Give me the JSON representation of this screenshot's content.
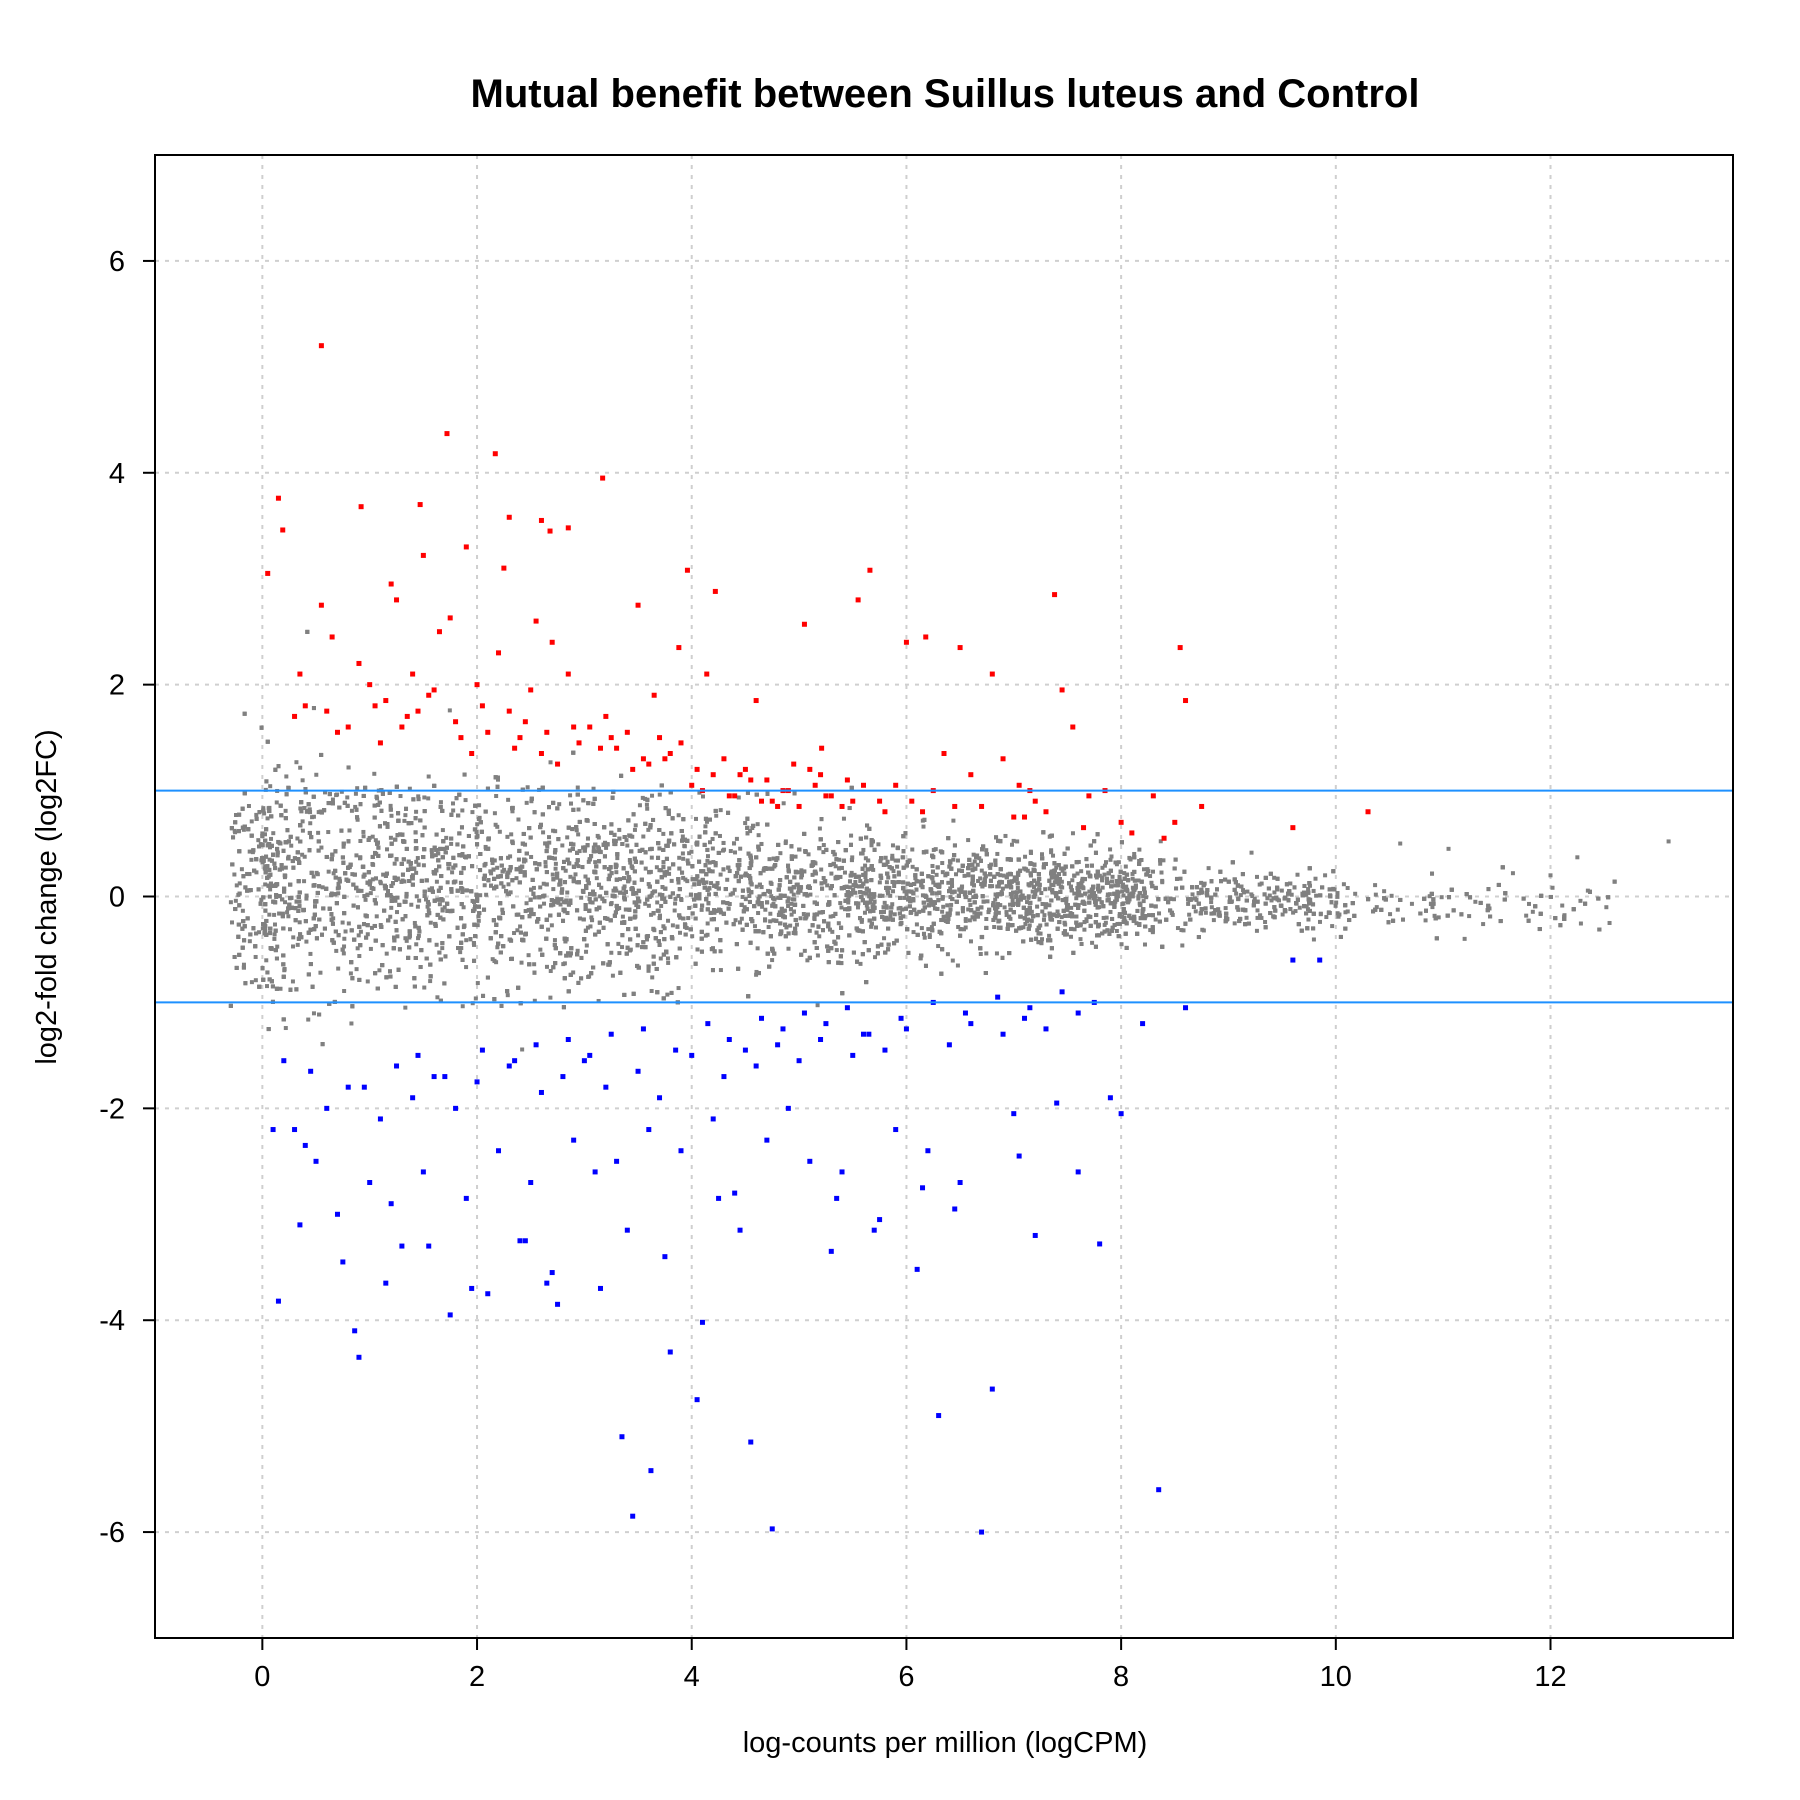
{
  "chart_data": {
    "type": "scatter",
    "title": "Mutual benefit between Suillus luteus and Control",
    "xlabel": "log-counts per million (logCPM)",
    "ylabel": "log2-fold change (log2FC)",
    "xlim": [
      -1,
      13.7
    ],
    "ylim": [
      -7,
      7
    ],
    "x_ticks": [
      0,
      2,
      4,
      6,
      8,
      10,
      12
    ],
    "y_ticks": [
      -6,
      -4,
      -2,
      0,
      2,
      4,
      6
    ],
    "grid": true,
    "reference_lines": {
      "y": [
        1,
        -1
      ],
      "color": "#1e90ff"
    },
    "colors": {
      "not_significant": "#808080",
      "up": "#ff0000",
      "down": "#0000ff"
    },
    "series": [
      {
        "category": "up",
        "x": [
          0.55,
          1.72,
          2.17,
          3.17,
          0.15,
          0.92,
          1.47,
          2.3,
          2.6,
          2.85,
          2.68,
          0.19,
          0.05,
          1.5,
          1.9,
          2.55,
          2.25,
          3.96,
          4.22,
          5.66,
          5.55,
          3.5,
          2.7,
          0.55,
          1.2,
          1.75,
          0.35,
          0.65,
          0.9,
          1.25,
          1.65,
          2.0,
          2.2,
          2.5,
          2.85,
          3.2,
          3.65,
          3.88,
          4.14,
          4.6,
          5.05,
          5.21,
          6.0,
          6.18,
          6.5,
          6.8,
          7.38,
          7.45,
          8.55,
          8.6,
          0.3,
          0.4,
          0.6,
          0.8,
          1.0,
          1.15,
          1.3,
          1.45,
          1.6,
          1.85,
          2.05,
          2.35,
          2.45,
          2.65,
          2.95,
          3.05,
          3.3,
          3.4,
          3.55,
          3.7,
          3.8,
          4.05,
          4.3,
          4.45,
          4.7,
          4.85,
          4.95,
          5.15,
          5.3,
          5.45,
          5.75,
          5.9,
          6.25,
          6.6,
          6.9,
          7.05,
          7.2,
          7.55,
          7.85,
          8.3,
          8.5,
          8.75,
          9.6,
          10.3,
          0.7,
          1.1,
          1.35,
          1.55,
          1.95,
          2.4,
          2.75,
          3.15,
          3.45,
          3.75,
          4.0,
          4.2,
          4.4,
          4.55,
          4.75,
          4.9,
          5.0,
          5.1,
          5.25,
          5.4,
          5.6,
          5.8,
          6.05,
          6.35,
          6.7,
          7.0,
          7.15,
          7.3,
          7.7,
          8.0,
          8.1,
          8.4,
          1.05,
          1.4,
          1.8,
          2.1,
          2.3,
          2.6,
          2.9,
          3.25,
          3.6,
          3.9,
          4.1,
          4.35,
          4.5,
          4.65,
          4.8,
          5.2,
          5.5,
          6.15,
          6.45,
          7.1,
          7.65
        ],
        "y": [
          5.2,
          4.37,
          4.18,
          3.95,
          3.76,
          3.68,
          3.7,
          3.58,
          3.55,
          3.48,
          3.45,
          3.46,
          3.05,
          3.22,
          3.3,
          2.6,
          3.1,
          3.08,
          2.88,
          3.08,
          2.8,
          2.75,
          2.4,
          2.75,
          2.95,
          2.63,
          2.1,
          2.45,
          2.2,
          2.8,
          2.5,
          2.0,
          2.3,
          1.95,
          2.1,
          1.7,
          1.9,
          2.35,
          2.1,
          1.85,
          2.57,
          1.4,
          2.4,
          2.45,
          2.35,
          2.1,
          2.85,
          1.95,
          2.35,
          1.85,
          1.7,
          1.8,
          1.75,
          1.6,
          2.0,
          1.85,
          1.6,
          1.75,
          1.95,
          1.5,
          1.8,
          1.4,
          1.65,
          1.55,
          1.45,
          1.6,
          1.4,
          1.55,
          1.3,
          1.5,
          1.35,
          1.2,
          1.3,
          1.15,
          1.1,
          1.0,
          1.25,
          1.05,
          0.95,
          1.1,
          0.9,
          1.05,
          1.0,
          1.15,
          1.3,
          1.05,
          0.9,
          1.6,
          1.0,
          0.95,
          0.7,
          0.85,
          0.65,
          0.8,
          1.55,
          1.45,
          1.7,
          1.9,
          1.35,
          1.5,
          1.25,
          1.4,
          1.2,
          1.3,
          1.05,
          1.15,
          0.95,
          1.1,
          0.9,
          1.0,
          0.85,
          1.2,
          0.95,
          0.85,
          1.05,
          0.8,
          0.9,
          1.35,
          0.85,
          0.75,
          1.0,
          0.8,
          0.95,
          0.7,
          0.6,
          0.55,
          1.8,
          2.1,
          1.65,
          1.55,
          1.75,
          1.35,
          1.6,
          1.5,
          1.25,
          1.45,
          1.0,
          0.95,
          1.2,
          0.9,
          0.85,
          1.15,
          0.9,
          0.8,
          0.85,
          0.75,
          0.65
        ]
      },
      {
        "category": "down",
        "x": [
          0.15,
          0.9,
          0.86,
          1.75,
          2.1,
          2.75,
          3.35,
          3.45,
          3.62,
          3.8,
          4.05,
          4.1,
          4.55,
          4.75,
          6.3,
          6.7,
          6.8,
          8.35,
          7.2,
          7.8,
          6.1,
          5.3,
          5.7,
          1.3,
          2.45,
          2.7,
          0.3,
          0.5,
          0.7,
          1.0,
          1.2,
          1.5,
          1.9,
          2.2,
          2.5,
          2.9,
          3.1,
          3.3,
          3.6,
          3.9,
          4.2,
          4.4,
          4.7,
          4.9,
          5.1,
          5.4,
          5.9,
          6.2,
          6.5,
          7.0,
          7.4,
          7.9,
          8.0,
          0.1,
          0.4,
          0.6,
          0.8,
          1.1,
          1.4,
          1.6,
          1.8,
          2.0,
          2.3,
          2.6,
          2.8,
          3.0,
          3.2,
          3.5,
          3.7,
          4.0,
          4.3,
          4.5,
          4.6,
          4.8,
          5.0,
          5.2,
          5.5,
          5.6,
          5.8,
          6.0,
          6.4,
          6.6,
          6.9,
          7.1,
          7.3,
          7.6,
          8.2,
          8.6,
          9.6,
          9.85,
          0.2,
          0.45,
          0.95,
          1.25,
          1.45,
          1.7,
          2.05,
          2.35,
          2.55,
          2.85,
          3.05,
          3.25,
          3.55,
          3.85,
          4.15,
          4.35,
          4.65,
          4.85,
          5.05,
          5.25,
          5.45,
          5.65,
          5.95,
          6.25,
          6.55,
          6.85,
          7.15,
          7.45,
          7.75,
          0.35,
          0.75,
          1.15,
          1.55,
          1.95,
          2.4,
          2.65,
          3.15,
          3.4,
          3.75,
          4.25,
          4.45,
          5.35,
          5.75,
          6.15,
          6.45,
          7.05,
          7.6
        ],
        "y": [
          -3.82,
          -4.35,
          -4.1,
          -3.95,
          -3.75,
          -3.85,
          -5.1,
          -5.85,
          -5.42,
          -4.3,
          -4.75,
          -4.02,
          -5.15,
          -5.97,
          -4.9,
          -6.0,
          -4.65,
          -5.6,
          -3.2,
          -3.28,
          -3.52,
          -3.35,
          -3.15,
          -3.3,
          -3.25,
          -3.55,
          -2.2,
          -2.5,
          -3.0,
          -2.7,
          -2.9,
          -2.6,
          -2.85,
          -2.4,
          -2.7,
          -2.3,
          -2.6,
          -2.5,
          -2.2,
          -2.4,
          -2.1,
          -2.8,
          -2.3,
          -2.0,
          -2.5,
          -2.6,
          -2.2,
          -2.4,
          -2.7,
          -2.05,
          -1.95,
          -1.9,
          -2.05,
          -2.2,
          -2.35,
          -2.0,
          -1.8,
          -2.1,
          -1.9,
          -1.7,
          -2.0,
          -1.75,
          -1.6,
          -1.85,
          -1.7,
          -1.55,
          -1.8,
          -1.65,
          -1.9,
          -1.5,
          -1.7,
          -1.45,
          -1.6,
          -1.4,
          -1.55,
          -1.35,
          -1.5,
          -1.3,
          -1.45,
          -1.25,
          -1.4,
          -1.2,
          -1.3,
          -1.15,
          -1.25,
          -1.1,
          -1.2,
          -1.05,
          -0.6,
          -0.6,
          -1.55,
          -1.65,
          -1.8,
          -1.6,
          -1.5,
          -1.7,
          -1.45,
          -1.55,
          -1.4,
          -1.35,
          -1.5,
          -1.3,
          -1.25,
          -1.45,
          -1.2,
          -1.35,
          -1.15,
          -1.25,
          -1.1,
          -1.2,
          -1.05,
          -1.3,
          -1.15,
          -1.0,
          -1.1,
          -0.95,
          -1.05,
          -0.9,
          -1.0,
          -3.1,
          -3.45,
          -3.65,
          -3.3,
          -3.7,
          -3.25,
          -3.65,
          -3.7,
          -3.15,
          -3.4,
          -2.85,
          -3.15,
          -2.85,
          -3.05,
          -2.75,
          -2.95,
          -2.45,
          -2.6
        ]
      }
    ],
    "background_cloud_note": ""
  }
}
